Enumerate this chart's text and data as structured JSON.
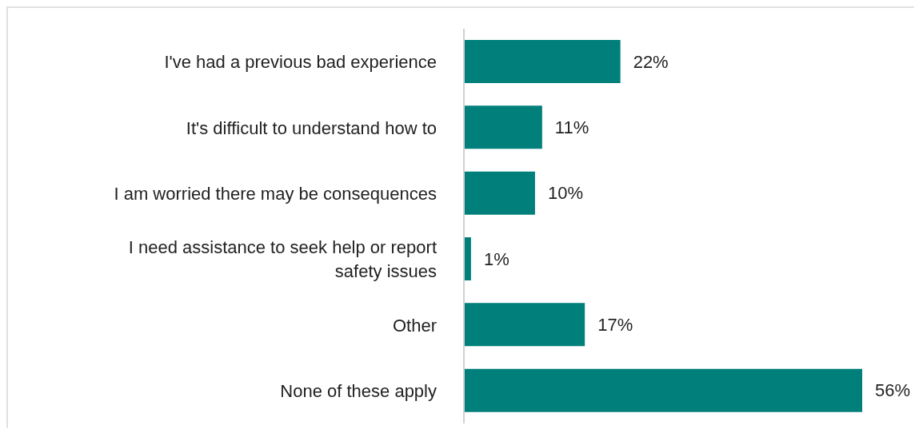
{
  "chart_data": {
    "type": "bar",
    "orientation": "horizontal",
    "categories": [
      "I've had a previous bad experience",
      "It's difficult to understand how to",
      "I am worried there may be consequences",
      "I need assistance to seek help or report safety issues",
      "Other",
      "None of these apply"
    ],
    "values": [
      22,
      11,
      10,
      1,
      17,
      56
    ],
    "value_labels": [
      "22%",
      "11%",
      "10%",
      "1%",
      "17%",
      "56%"
    ],
    "color": "#007f7b"
  }
}
